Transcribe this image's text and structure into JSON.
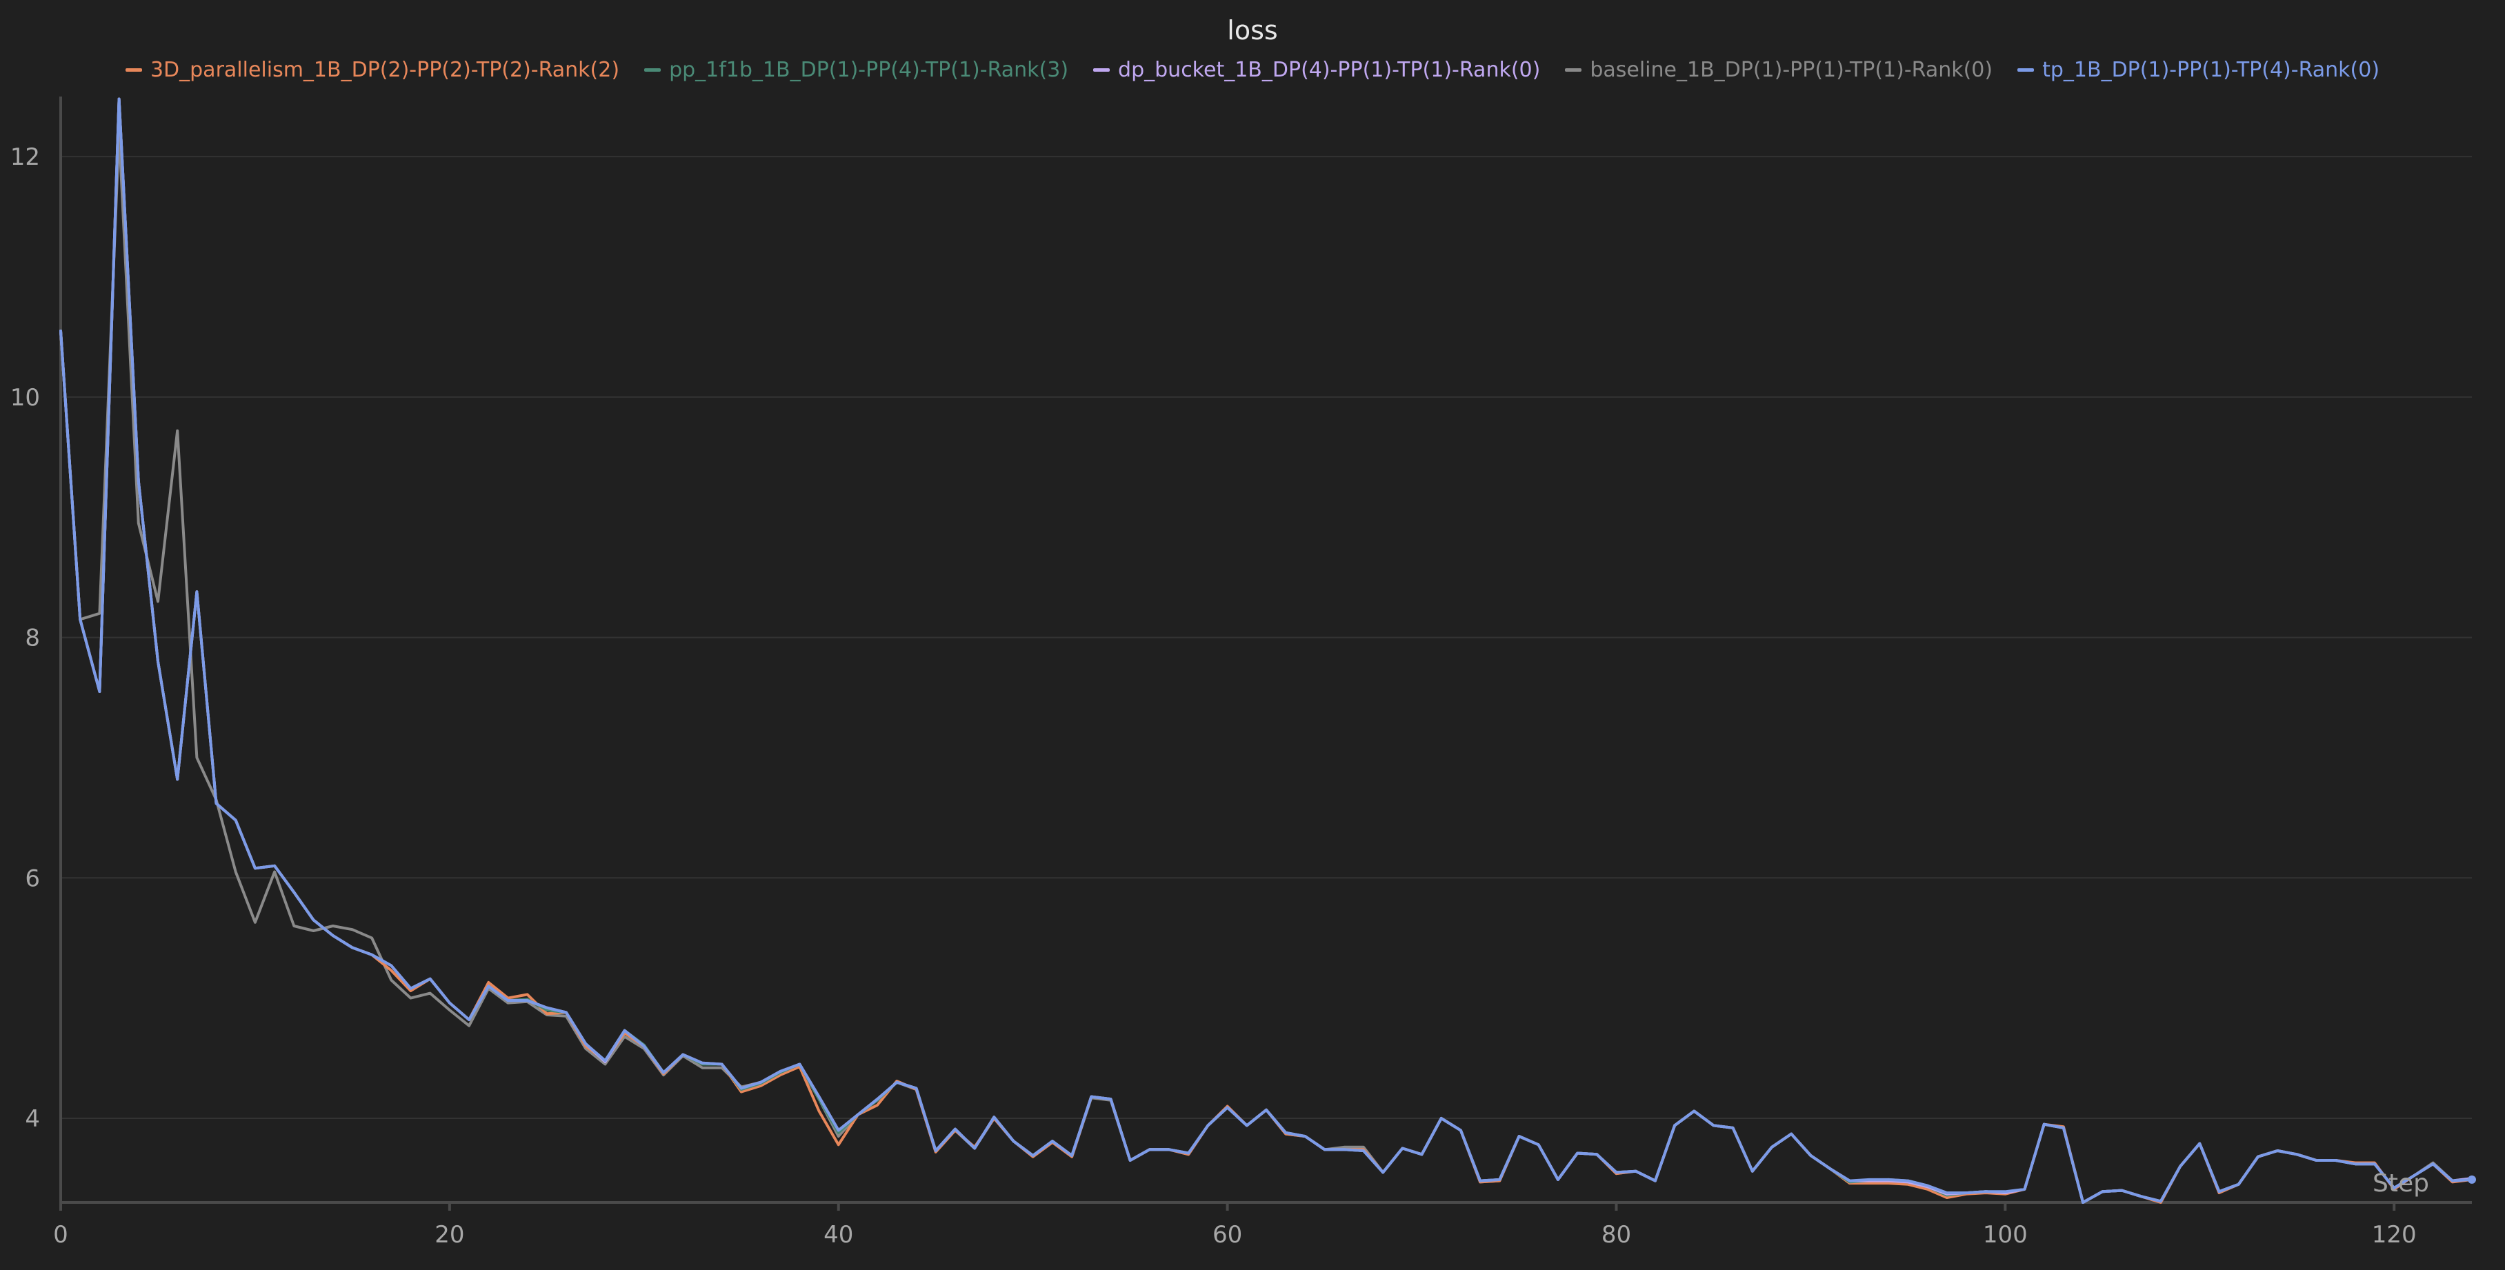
{
  "chart_data": {
    "type": "line",
    "title": "loss",
    "xlabel": "Step",
    "ylabel": "",
    "xlim": [
      0,
      124
    ],
    "ylim": [
      3.3,
      12.5
    ],
    "x_ticks": [
      0,
      20,
      40,
      60,
      80,
      100,
      120
    ],
    "y_ticks": [
      4,
      6,
      8,
      10,
      12
    ],
    "grid": true,
    "legend_position": "top-center",
    "x": [
      0,
      1,
      2,
      3,
      4,
      5,
      6,
      7,
      8,
      9,
      10,
      11,
      12,
      13,
      14,
      15,
      16,
      17,
      18,
      19,
      20,
      21,
      22,
      23,
      24,
      25,
      26,
      27,
      28,
      29,
      30,
      31,
      32,
      33,
      34,
      35,
      36,
      37,
      38,
      39,
      40,
      41,
      42,
      43,
      44,
      45,
      46,
      47,
      48,
      49,
      50,
      51,
      52,
      53,
      54,
      55,
      56,
      57,
      58,
      59,
      60,
      61,
      62,
      63,
      64,
      65,
      66,
      67,
      68,
      69,
      70,
      71,
      72,
      73,
      74,
      75,
      76,
      77,
      78,
      79,
      80,
      81,
      82,
      83,
      84,
      85,
      86,
      87,
      88,
      89,
      90,
      91,
      92,
      93,
      94,
      95,
      96,
      97,
      98,
      99,
      100,
      101,
      102,
      103,
      104,
      105,
      106,
      107,
      108,
      109,
      110,
      111,
      112,
      113,
      114,
      115,
      116,
      117,
      118,
      119,
      120,
      121,
      122,
      123,
      124
    ],
    "series": [
      {
        "name": "3D_parallelism_1B_DP(2)-PP(2)-TP(2)-Rank(2)",
        "color": "#e8875a",
        "values": [
          10.55,
          8.15,
          7.55,
          12.48,
          9.3,
          7.8,
          6.82,
          8.38,
          6.62,
          6.48,
          6.08,
          6.1,
          5.88,
          5.65,
          5.52,
          5.42,
          5.36,
          5.23,
          5.06,
          5.16,
          4.96,
          4.82,
          5.13,
          5.0,
          5.03,
          4.87,
          4.88,
          4.6,
          4.48,
          4.71,
          4.6,
          4.37,
          4.53,
          4.45,
          4.45,
          4.22,
          4.27,
          4.36,
          4.43,
          4.06,
          3.78,
          4.03,
          4.11,
          4.31,
          4.24,
          3.72,
          3.9,
          3.76,
          4.0,
          3.81,
          3.68,
          3.8,
          3.68,
          4.18,
          4.16,
          3.65,
          3.74,
          3.74,
          3.7,
          3.94,
          4.1,
          3.94,
          4.07,
          3.87,
          3.85,
          3.74,
          3.74,
          3.74,
          3.55,
          3.75,
          3.7,
          4.0,
          3.9,
          3.47,
          3.48,
          3.85,
          3.78,
          3.49,
          3.71,
          3.7,
          3.54,
          3.56,
          3.48,
          3.94,
          4.06,
          3.94,
          3.92,
          3.56,
          3.76,
          3.87,
          3.69,
          3.58,
          3.46,
          3.46,
          3.46,
          3.45,
          3.41,
          3.34,
          3.37,
          3.38,
          3.37,
          3.41,
          3.95,
          3.93,
          3.3,
          3.39,
          3.4,
          3.35,
          3.3,
          3.6,
          3.79,
          3.38,
          3.45,
          3.68,
          3.73,
          3.7,
          3.65,
          3.65,
          3.63,
          3.63,
          3.41,
          3.52,
          3.62,
          3.47,
          3.49
        ]
      },
      {
        "name": "pp_1f1b_1B_DP(1)-PP(4)-TP(1)-Rank(3)",
        "color": "#4a8a76",
        "values": [
          10.55,
          8.15,
          7.55,
          12.48,
          9.3,
          7.8,
          6.82,
          8.38,
          6.62,
          6.48,
          6.08,
          6.1,
          5.88,
          5.65,
          5.52,
          5.42,
          5.36,
          5.27,
          5.08,
          5.16,
          4.96,
          4.82,
          5.1,
          4.98,
          4.99,
          4.9,
          4.88,
          4.62,
          4.47,
          4.73,
          4.61,
          4.38,
          4.53,
          4.45,
          4.45,
          4.24,
          4.29,
          4.38,
          4.45,
          4.16,
          3.88,
          4.03,
          4.15,
          4.3,
          4.25,
          3.73,
          3.91,
          3.75,
          4.01,
          3.81,
          3.69,
          3.81,
          3.69,
          4.18,
          4.16,
          3.65,
          3.74,
          3.74,
          3.71,
          3.94,
          4.09,
          3.94,
          4.07,
          3.88,
          3.85,
          3.74,
          3.74,
          3.73,
          3.55,
          3.75,
          3.7,
          4.0,
          3.9,
          3.48,
          3.49,
          3.85,
          3.78,
          3.49,
          3.71,
          3.7,
          3.55,
          3.56,
          3.48,
          3.94,
          4.06,
          3.94,
          3.92,
          3.56,
          3.76,
          3.87,
          3.69,
          3.58,
          3.47,
          3.48,
          3.48,
          3.47,
          3.43,
          3.36,
          3.38,
          3.39,
          3.38,
          3.41,
          3.95,
          3.92,
          3.3,
          3.39,
          3.4,
          3.35,
          3.31,
          3.6,
          3.79,
          3.39,
          3.45,
          3.68,
          3.73,
          3.7,
          3.65,
          3.65,
          3.62,
          3.62,
          3.42,
          3.52,
          3.62,
          3.48,
          3.5
        ]
      },
      {
        "name": "dp_bucket_1B_DP(4)-PP(1)-TP(1)-Rank(0)",
        "color": "#c0a8f0",
        "values": [
          10.55,
          8.15,
          7.55,
          12.48,
          9.3,
          7.8,
          6.82,
          8.38,
          6.62,
          6.48,
          6.08,
          6.1,
          5.88,
          5.65,
          5.52,
          5.42,
          5.36,
          5.27,
          5.08,
          5.16,
          4.96,
          4.82,
          5.1,
          4.98,
          4.98,
          4.92,
          4.88,
          4.62,
          4.47,
          4.73,
          4.6,
          4.38,
          4.53,
          4.46,
          4.45,
          4.25,
          4.3,
          4.39,
          4.45,
          4.18,
          3.9,
          4.03,
          4.16,
          4.3,
          4.25,
          3.73,
          3.91,
          3.75,
          4.01,
          3.81,
          3.69,
          3.81,
          3.69,
          4.18,
          4.16,
          3.65,
          3.74,
          3.74,
          3.71,
          3.94,
          4.09,
          3.94,
          4.07,
          3.88,
          3.85,
          3.74,
          3.74,
          3.73,
          3.55,
          3.75,
          3.7,
          4.0,
          3.9,
          3.48,
          3.49,
          3.85,
          3.78,
          3.49,
          3.71,
          3.7,
          3.55,
          3.56,
          3.48,
          3.94,
          4.06,
          3.94,
          3.92,
          3.56,
          3.76,
          3.87,
          3.69,
          3.58,
          3.48,
          3.48,
          3.48,
          3.47,
          3.43,
          3.37,
          3.38,
          3.39,
          3.38,
          3.41,
          3.95,
          3.92,
          3.3,
          3.39,
          3.4,
          3.35,
          3.31,
          3.6,
          3.79,
          3.39,
          3.45,
          3.68,
          3.73,
          3.7,
          3.65,
          3.65,
          3.62,
          3.62,
          3.42,
          3.52,
          3.62,
          3.48,
          3.5
        ]
      },
      {
        "name": "baseline_1B_DP(1)-PP(1)-TP(1)-Rank(0)",
        "color": "#8a8a8a",
        "values": [
          10.55,
          8.15,
          8.2,
          12.2,
          8.95,
          8.3,
          9.72,
          7.0,
          6.65,
          6.05,
          5.63,
          6.05,
          5.6,
          5.56,
          5.6,
          5.57,
          5.5,
          5.15,
          5.0,
          5.04,
          4.9,
          4.77,
          5.08,
          4.96,
          4.97,
          4.86,
          4.85,
          4.58,
          4.45,
          4.68,
          4.58,
          4.36,
          4.52,
          4.42,
          4.42,
          4.26,
          4.3,
          4.37,
          4.44,
          4.16,
          3.85,
          4.03,
          4.15,
          4.3,
          4.24,
          3.72,
          3.9,
          3.75,
          4.0,
          3.81,
          3.68,
          3.8,
          3.68,
          4.17,
          4.15,
          3.65,
          3.74,
          3.74,
          3.7,
          3.94,
          4.09,
          3.94,
          4.07,
          3.87,
          3.85,
          3.74,
          3.76,
          3.76,
          3.55,
          3.75,
          3.7,
          4.0,
          3.9,
          3.47,
          3.48,
          3.85,
          3.78,
          3.49,
          3.71,
          3.7,
          3.54,
          3.56,
          3.48,
          3.94,
          4.06,
          3.94,
          3.92,
          3.56,
          3.76,
          3.87,
          3.69,
          3.58,
          3.48,
          3.48,
          3.49,
          3.48,
          3.44,
          3.38,
          3.38,
          3.39,
          3.38,
          3.41,
          3.95,
          3.92,
          3.3,
          3.39,
          3.4,
          3.35,
          3.31,
          3.6,
          3.79,
          3.39,
          3.45,
          3.68,
          3.73,
          3.7,
          3.65,
          3.65,
          3.62,
          3.62,
          3.42,
          3.52,
          3.63,
          3.48,
          3.49
        ]
      },
      {
        "name": "tp_1B_DP(1)-PP(1)-TP(4)-Rank(0)",
        "color": "#7c9be8",
        "values": [
          10.55,
          8.15,
          7.55,
          12.48,
          9.3,
          7.8,
          6.82,
          8.38,
          6.62,
          6.48,
          6.08,
          6.1,
          5.88,
          5.65,
          5.52,
          5.42,
          5.36,
          5.27,
          5.08,
          5.16,
          4.96,
          4.82,
          5.1,
          4.98,
          4.98,
          4.92,
          4.88,
          4.62,
          4.48,
          4.73,
          4.6,
          4.38,
          4.53,
          4.46,
          4.45,
          4.25,
          4.3,
          4.39,
          4.45,
          4.18,
          3.9,
          4.03,
          4.16,
          4.3,
          4.25,
          3.73,
          3.91,
          3.75,
          4.01,
          3.81,
          3.69,
          3.81,
          3.69,
          4.18,
          4.16,
          3.65,
          3.74,
          3.74,
          3.71,
          3.94,
          4.09,
          3.94,
          4.07,
          3.88,
          3.85,
          3.74,
          3.74,
          3.73,
          3.55,
          3.75,
          3.7,
          4.0,
          3.9,
          3.48,
          3.49,
          3.85,
          3.78,
          3.49,
          3.71,
          3.7,
          3.55,
          3.56,
          3.48,
          3.94,
          4.06,
          3.94,
          3.92,
          3.56,
          3.76,
          3.87,
          3.69,
          3.58,
          3.48,
          3.49,
          3.49,
          3.48,
          3.44,
          3.38,
          3.38,
          3.39,
          3.39,
          3.41,
          3.95,
          3.92,
          3.3,
          3.39,
          3.4,
          3.35,
          3.31,
          3.6,
          3.79,
          3.39,
          3.45,
          3.68,
          3.73,
          3.7,
          3.65,
          3.65,
          3.62,
          3.62,
          3.42,
          3.52,
          3.62,
          3.48,
          3.49
        ]
      }
    ]
  }
}
